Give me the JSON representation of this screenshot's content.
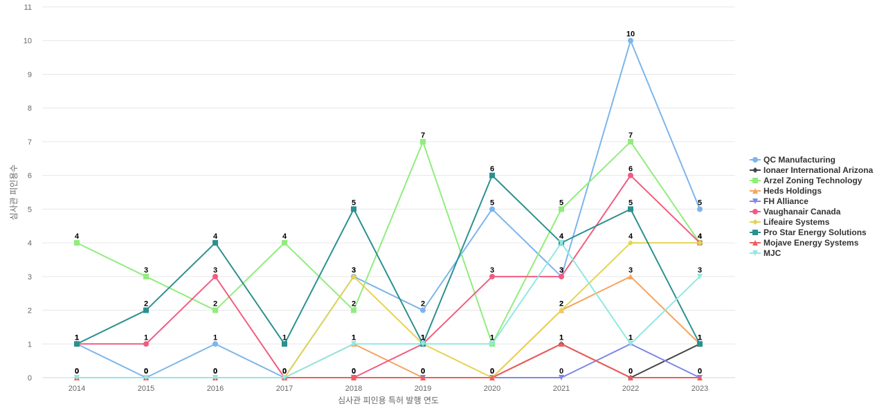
{
  "chart_data": {
    "type": "line",
    "title": "",
    "xlabel": "심사관 피인용 특허 발행 연도",
    "ylabel": "심사관 피인용수",
    "x": [
      "2014",
      "2015",
      "2016",
      "2017",
      "2018",
      "2019",
      "2020",
      "2021",
      "2022",
      "2023"
    ],
    "ylim": [
      0,
      11
    ],
    "yticks": [
      0,
      1,
      2,
      3,
      4,
      5,
      6,
      7,
      8,
      9,
      10,
      11
    ],
    "grid": true,
    "legend_position": "right",
    "series": [
      {
        "name": "QC Manufacturing",
        "color": "#7cb5ec",
        "marker": "circle",
        "values": [
          1,
          0,
          1,
          0,
          3,
          2,
          5,
          3,
          10,
          5
        ]
      },
      {
        "name": "Ionaer International Arizona",
        "color": "#434348",
        "marker": "diamond",
        "values": [
          0,
          0,
          0,
          0,
          0,
          0,
          0,
          1,
          0,
          1
        ]
      },
      {
        "name": "Arzel Zoning Technology",
        "color": "#90ed7d",
        "marker": "square",
        "values": [
          4,
          3,
          2,
          4,
          2,
          7,
          1,
          5,
          7,
          4
        ]
      },
      {
        "name": "Heds Holdings",
        "color": "#f7a35c",
        "marker": "triangle",
        "values": [
          0,
          0,
          0,
          0,
          1,
          0,
          0,
          2,
          3,
          1
        ]
      },
      {
        "name": "FH Alliance",
        "color": "#8085e9",
        "marker": "triangle-down",
        "values": [
          0,
          0,
          0,
          0,
          0,
          0,
          0,
          0,
          1,
          0
        ]
      },
      {
        "name": "Vaughanair Canada",
        "color": "#f15c80",
        "marker": "circle",
        "values": [
          1,
          1,
          3,
          0,
          0,
          1,
          3,
          3,
          6,
          4
        ]
      },
      {
        "name": "Lifeaire Systems",
        "color": "#e4d354",
        "marker": "diamond",
        "values": [
          0,
          0,
          0,
          0,
          3,
          1,
          0,
          2,
          4,
          4
        ]
      },
      {
        "name": "Pro Star Energy Solutions",
        "color": "#2b908f",
        "marker": "square",
        "values": [
          1,
          2,
          4,
          1,
          5,
          1,
          6,
          4,
          5,
          1
        ]
      },
      {
        "name": "Mojave Energy Systems",
        "color": "#f45b5b",
        "marker": "triangle",
        "values": [
          0,
          0,
          0,
          0,
          0,
          0,
          0,
          1,
          0,
          0
        ]
      },
      {
        "name": "MJC",
        "color": "#91e8e1",
        "marker": "triangle-down",
        "values": [
          0,
          0,
          0,
          0,
          1,
          1,
          1,
          4,
          1,
          3
        ]
      }
    ]
  }
}
